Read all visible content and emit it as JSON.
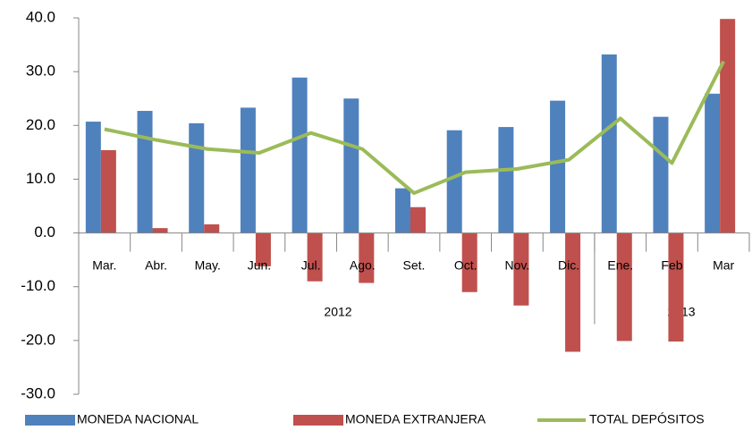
{
  "chart_data": {
    "type": "bar",
    "categories": [
      "Mar.",
      "Abr.",
      "May.",
      "Jun.",
      "Jul.",
      "Ago.",
      "Set.",
      "Oct.",
      "Nov.",
      "Dic.",
      "Ene.",
      "Feb",
      "Mar"
    ],
    "x_groups": [
      "2012",
      "2013"
    ],
    "series": [
      {
        "name": "MONEDA NACIONAL",
        "type": "bar",
        "color": "#4f81bd",
        "values": [
          20.7,
          22.7,
          20.4,
          23.3,
          28.9,
          25.0,
          8.3,
          19.1,
          19.7,
          24.6,
          33.2,
          21.6,
          25.9
        ]
      },
      {
        "name": "MONEDA EXTRANJERA",
        "type": "bar",
        "color": "#c0504d",
        "values": [
          15.4,
          0.9,
          1.6,
          -6.2,
          -9.0,
          -9.3,
          4.8,
          -11.0,
          -13.5,
          -22.1,
          -20.1,
          -20.2,
          39.8
        ]
      },
      {
        "name": "TOTAL DEPÓSITOS",
        "type": "line",
        "color": "#9bbb59",
        "values": [
          19.3,
          17.3,
          15.6,
          14.9,
          18.6,
          15.6,
          7.4,
          11.3,
          11.9,
          13.6,
          21.3,
          13.0,
          31.9
        ]
      }
    ],
    "ylim": [
      -30,
      40
    ],
    "yticks": [
      {
        "value": -30,
        "label": "-30.0"
      },
      {
        "value": -20,
        "label": "-20.0"
      },
      {
        "value": -10,
        "label": "-10.0"
      },
      {
        "value": 0,
        "label": "0.0"
      },
      {
        "value": 10,
        "label": "10.0"
      },
      {
        "value": 20,
        "label": "20.0"
      },
      {
        "value": 30,
        "label": "30.0"
      },
      {
        "value": 40,
        "label": "40.0"
      }
    ],
    "legend": "bottom"
  }
}
